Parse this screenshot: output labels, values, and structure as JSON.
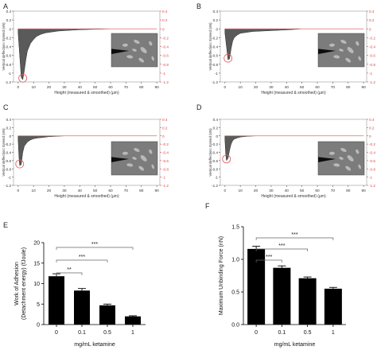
{
  "figure": {
    "panel_letters": [
      "A",
      "B",
      "C",
      "D",
      "E",
      "F"
    ]
  },
  "chart_data": [
    {
      "panel": "A",
      "type": "line",
      "xlabel": "Height (measured & smoothed) (µm)",
      "ylabel": "Vertical deflection: Extend (nN)",
      "xlim": [
        -3,
        92
      ],
      "ylim": [
        -1.2,
        0.4
      ],
      "xticks": [
        "0",
        "10",
        "20",
        "30",
        "40",
        "50",
        "60",
        "70",
        "80",
        "90"
      ],
      "yticks": [
        "0.4",
        "0.2",
        "0",
        "-0.2",
        "-0.4",
        "-0.6",
        "-0.8",
        "-1",
        "-1.2"
      ],
      "grid": false,
      "series": [
        {
          "role": "retract",
          "x": [
            0,
            1,
            2,
            3,
            4,
            5,
            6,
            8,
            10,
            12,
            15,
            18,
            22,
            26,
            30,
            35,
            40,
            50,
            60,
            70,
            80,
            90
          ],
          "y": [
            -0.1,
            -0.6,
            -1.1,
            -1.15,
            -0.95,
            -0.7,
            -0.5,
            -0.33,
            -0.24,
            -0.17,
            -0.12,
            -0.09,
            -0.07,
            -0.05,
            -0.04,
            -0.03,
            -0.02,
            -0.01,
            0,
            0,
            0,
            0
          ]
        },
        {
          "role": "approach",
          "x": [
            0,
            90
          ],
          "y": [
            0,
            0
          ]
        }
      ],
      "color_curve": "#333333",
      "color_approach": "#e06a6a"
    },
    {
      "panel": "B",
      "type": "line",
      "xlabel": "Height (measured & smoothed) (µm)",
      "ylabel": "Vertical deflection: Extend (nN)",
      "xlim": [
        -3,
        92
      ],
      "ylim": [
        -1.2,
        0.4
      ],
      "xticks": [
        "0",
        "10",
        "20",
        "30",
        "40",
        "50",
        "60",
        "70",
        "80",
        "90"
      ],
      "yticks": [
        "0.4",
        "0.2",
        "0",
        "-0.2",
        "-0.4",
        "-0.6",
        "-0.8",
        "-1",
        "-1.2"
      ],
      "grid": false,
      "series": [
        {
          "role": "retract",
          "x": [
            0,
            1,
            2,
            3,
            4,
            5,
            6,
            8,
            10,
            14,
            18,
            24,
            30,
            36,
            42,
            50,
            60,
            70,
            80,
            90
          ],
          "y": [
            -0.1,
            -0.4,
            -0.7,
            -0.68,
            -0.45,
            -0.28,
            -0.2,
            -0.14,
            -0.1,
            -0.08,
            -0.06,
            -0.05,
            -0.04,
            -0.03,
            -0.02,
            0,
            0,
            0,
            0,
            0
          ]
        },
        {
          "role": "approach",
          "x": [
            0,
            90
          ],
          "y": [
            0,
            0
          ]
        }
      ],
      "color_curve": "#333333",
      "color_approach": "#e06a6a"
    },
    {
      "panel": "C",
      "type": "line",
      "xlabel": "Height (measured & smoothed) (µm)",
      "ylabel": "Vertical deflection: Extend (nN)",
      "xlim": [
        -3,
        92
      ],
      "ylim": [
        -1.2,
        0.4
      ],
      "xticks": [
        "0",
        "10",
        "20",
        "30",
        "40",
        "50",
        "60",
        "70",
        "80",
        "90"
      ],
      "yticks": [
        "0.4",
        "0.2",
        "0",
        "-0.2",
        "-0.4",
        "-0.6",
        "-0.8",
        "-1",
        "-1.2"
      ],
      "grid": false,
      "series": [
        {
          "role": "retract",
          "x": [
            0,
            0.5,
            1,
            2,
            3,
            4,
            6,
            8,
            10,
            13,
            16,
            20,
            25,
            30,
            40,
            50,
            60,
            70,
            80,
            90
          ],
          "y": [
            -0.1,
            -0.5,
            -0.72,
            -0.7,
            -0.4,
            -0.25,
            -0.15,
            -0.1,
            -0.07,
            -0.05,
            -0.04,
            -0.02,
            -0.01,
            0,
            0,
            0,
            0,
            0,
            0,
            0
          ]
        },
        {
          "role": "approach",
          "x": [
            0,
            90
          ],
          "y": [
            0,
            0
          ]
        }
      ],
      "color_curve": "#333333",
      "color_approach": "#e06a6a"
    },
    {
      "panel": "D",
      "type": "line",
      "xlabel": "Height (measured & smoothed) (µm)",
      "ylabel": "Vertical deflection: Extend (nN)",
      "xlim": [
        -3,
        92
      ],
      "ylim": [
        -1.2,
        0.4
      ],
      "xticks": [
        "0",
        "10",
        "20",
        "30",
        "40",
        "50",
        "60",
        "70",
        "80",
        "90"
      ],
      "yticks": [
        "0.4",
        "0.2",
        "0",
        "-0.2",
        "-0.4",
        "-0.6",
        "-0.8",
        "-1",
        "-1.2"
      ],
      "grid": false,
      "series": [
        {
          "role": "retract",
          "x": [
            0,
            0.5,
            1,
            2,
            3,
            4,
            5,
            6,
            8,
            10,
            12,
            15,
            20,
            30,
            40,
            50,
            60,
            70,
            80,
            90
          ],
          "y": [
            -0.1,
            -0.45,
            -0.6,
            -0.55,
            -0.35,
            -0.2,
            -0.12,
            -0.08,
            -0.05,
            -0.03,
            -0.02,
            -0.01,
            0,
            0,
            0,
            0,
            0,
            0,
            0,
            0
          ]
        },
        {
          "role": "approach",
          "x": [
            0,
            90
          ],
          "y": [
            0,
            0
          ]
        }
      ],
      "color_curve": "#333333",
      "color_approach": "#e06a6a"
    },
    {
      "panel": "E",
      "type": "bar",
      "categories": [
        "0",
        "0.1",
        "0.5",
        "1"
      ],
      "values": [
        11.8,
        8.3,
        4.7,
        2.0
      ],
      "errors": [
        0.6,
        0.5,
        0.3,
        0.15
      ],
      "xlabel": "mg/mL ketamine",
      "ylabel": "Work of Adhesion (Detachment energy)  (fJoule)",
      "ylim": [
        0,
        20
      ],
      "yticks": [
        "0",
        "5",
        "10",
        "15",
        "20"
      ],
      "significance": [
        {
          "from": 0,
          "to": 1,
          "label": "**"
        },
        {
          "from": 0,
          "to": 2,
          "label": "***"
        },
        {
          "from": 0,
          "to": 3,
          "label": "***"
        }
      ],
      "bar_color": "#000000"
    },
    {
      "panel": "F",
      "type": "bar",
      "categories": [
        "0",
        "0.1",
        "0.5",
        "1"
      ],
      "values": [
        1.16,
        0.87,
        0.71,
        0.55
      ],
      "errors": [
        0.04,
        0.03,
        0.02,
        0.02
      ],
      "xlabel": "mg/mL ketamine",
      "ylabel": "Maximum Unbinding Force (nN)",
      "ylim": [
        0,
        1.5
      ],
      "yticks": [
        "0.0",
        "0.5",
        "1.0",
        "1.5"
      ],
      "significance": [
        {
          "from": 0,
          "to": 1,
          "label": "***"
        },
        {
          "from": 0,
          "to": 2,
          "label": "***"
        },
        {
          "from": 0,
          "to": 3,
          "label": "***"
        }
      ],
      "bar_color": "#000000"
    }
  ]
}
